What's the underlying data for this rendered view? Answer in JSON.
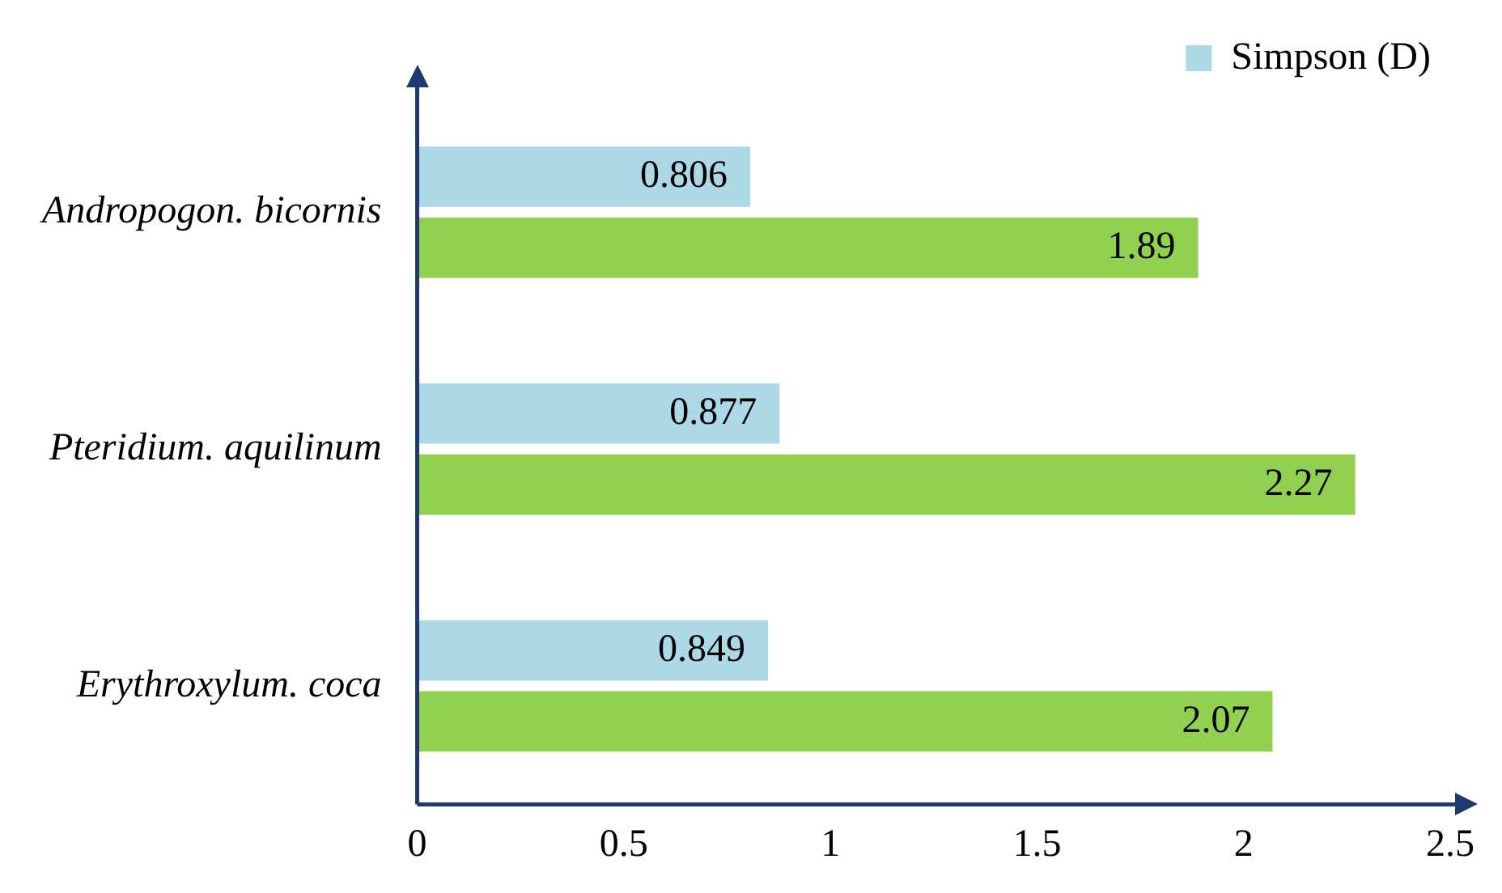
{
  "chart_data": {
    "type": "bar",
    "orientation": "horizontal",
    "categories": [
      "Andropogon. bicornis",
      "Pteridium. aquilinum",
      "Erythroxylum. coca"
    ],
    "series": [
      {
        "name": "Simpson (D)",
        "color": "#add8e6",
        "values": [
          0.806,
          0.877,
          0.849
        ]
      },
      {
        "color": "#92d050",
        "values": [
          1.89,
          2.27,
          2.07
        ]
      }
    ],
    "xlim": [
      0,
      2.5
    ],
    "xticks": [
      0,
      0.5,
      1,
      1.5,
      2,
      2.5
    ],
    "data_labels": true,
    "legend": "top right"
  }
}
